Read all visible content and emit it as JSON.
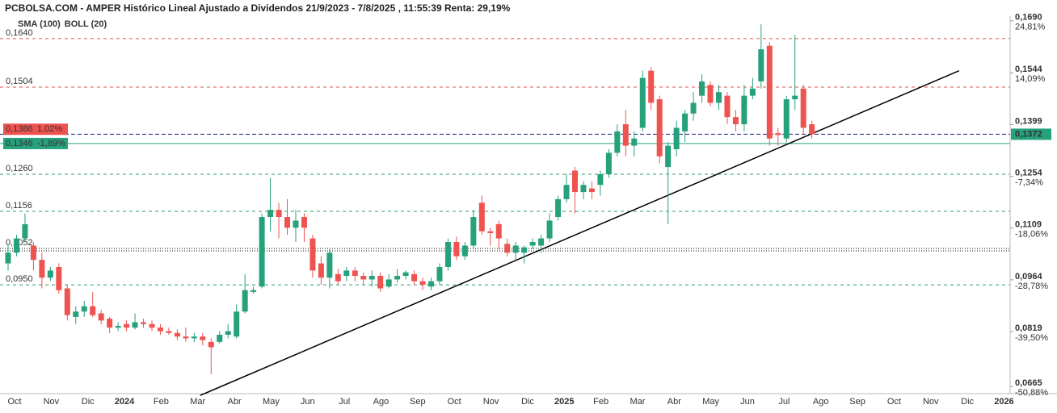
{
  "chart_data": {
    "type": "candlestick",
    "title": "PCBOLSA.COM - AMPER Histórico Lineal Ajustado a Dividendos 21/9/2023 - 7/8/2025 , 11:55:39 Renta: 29,19%",
    "indicators": [
      {
        "name": "SMA (100)",
        "color": "#8fcdee"
      },
      {
        "name": "BOLL (20)",
        "color": "#c5d3dc"
      }
    ],
    "up_color": "#26a17b",
    "down_color": "#ef5350",
    "months": [
      "Oct",
      "Nov",
      "Dic",
      "2024",
      "Feb",
      "Mar",
      "Abr",
      "May",
      "Jun",
      "Jul",
      "Ago",
      "Sep",
      "Oct",
      "Nov",
      "Dic",
      "2025",
      "Feb",
      "Mar",
      "Abr",
      "May",
      "Jun",
      "Jul",
      "Ago",
      "Sep",
      "Oct",
      "Nov",
      "Dic",
      "2026"
    ],
    "open": [
      0.101,
      0.104,
      0.108,
      0.106,
      0.102,
      0.097,
      0.1,
      0.094,
      0.086,
      0.0875,
      0.089,
      0.087,
      0.0855,
      0.083,
      0.084,
      0.083,
      0.0845,
      0.084,
      0.083,
      0.082,
      0.0815,
      0.0805,
      0.08,
      0.0805,
      0.079,
      0.079,
      0.081,
      0.0805,
      0.0875,
      0.093,
      0.0945,
      0.114,
      0.116,
      0.114,
      0.111,
      0.114,
      0.108,
      0.101,
      0.097,
      0.098,
      0.0975,
      0.099,
      0.0975,
      0.0965,
      0.0975,
      0.0945,
      0.0965,
      0.0975,
      0.098,
      0.096,
      0.0945,
      0.096,
      0.1,
      0.107,
      0.103,
      0.106,
      0.118,
      0.11,
      0.112,
      0.1065,
      0.104,
      0.104,
      0.106,
      0.106,
      0.108,
      0.114,
      0.119,
      0.127,
      0.121,
      0.122,
      0.123,
      0.126,
      0.132,
      0.14,
      0.134,
      0.139,
      0.155,
      0.147,
      0.128,
      0.133,
      0.138,
      0.143,
      0.148,
      0.151,
      0.146,
      0.148,
      0.142,
      0.14,
      0.148,
      0.152,
      0.162,
      0.1375,
      0.136,
      0.147,
      0.15,
      0.14
    ],
    "high": [
      0.106,
      0.109,
      0.115,
      0.107,
      0.104,
      0.1,
      0.101,
      0.095,
      0.089,
      0.0905,
      0.093,
      0.088,
      0.086,
      0.0845,
      0.085,
      0.087,
      0.0855,
      0.085,
      0.084,
      0.083,
      0.0825,
      0.083,
      0.0815,
      0.0815,
      0.08,
      0.082,
      0.084,
      0.0895,
      0.098,
      0.0945,
      0.115,
      0.125,
      0.118,
      0.119,
      0.116,
      0.115,
      0.109,
      0.103,
      0.105,
      0.0995,
      0.1,
      0.1,
      0.0985,
      0.099,
      0.0985,
      0.098,
      0.0995,
      0.099,
      0.099,
      0.097,
      0.097,
      0.101,
      0.108,
      0.1085,
      0.107,
      0.116,
      0.12,
      0.111,
      0.113,
      0.108,
      0.107,
      0.106,
      0.108,
      0.109,
      0.115,
      0.12,
      0.126,
      0.128,
      0.124,
      0.124,
      0.127,
      0.133,
      0.14,
      0.144,
      0.138,
      0.155,
      0.156,
      0.148,
      0.135,
      0.141,
      0.144,
      0.149,
      0.154,
      0.152,
      0.151,
      0.149,
      0.144,
      0.151,
      0.153,
      0.168,
      0.163,
      0.139,
      0.148,
      0.165,
      0.151,
      0.141
    ],
    "low": [
      0.099,
      0.103,
      0.107,
      0.099,
      0.094,
      0.096,
      0.0925,
      0.085,
      0.084,
      0.086,
      0.086,
      0.084,
      0.0815,
      0.082,
      0.082,
      0.0825,
      0.083,
      0.082,
      0.081,
      0.081,
      0.0795,
      0.079,
      0.079,
      0.078,
      0.07,
      0.0785,
      0.08,
      0.08,
      0.087,
      0.0925,
      0.094,
      0.11,
      0.108,
      0.109,
      0.107,
      0.107,
      0.097,
      0.095,
      0.094,
      0.095,
      0.096,
      0.096,
      0.095,
      0.0945,
      0.093,
      0.094,
      0.0955,
      0.0965,
      0.095,
      0.0935,
      0.0935,
      0.095,
      0.099,
      0.102,
      0.102,
      0.105,
      0.109,
      0.106,
      0.105,
      0.103,
      0.102,
      0.101,
      0.105,
      0.104,
      0.107,
      0.113,
      0.118,
      0.115,
      0.119,
      0.119,
      0.12,
      0.125,
      0.131,
      0.131,
      0.131,
      0.138,
      0.144,
      0.129,
      0.112,
      0.131,
      0.135,
      0.141,
      0.146,
      0.145,
      0.144,
      0.14,
      0.138,
      0.138,
      0.147,
      0.15,
      0.134,
      0.134,
      0.135,
      0.144,
      0.137,
      0.136
    ],
    "close": [
      0.104,
      0.108,
      0.112,
      0.102,
      0.097,
      0.099,
      0.0935,
      0.0865,
      0.0875,
      0.089,
      0.0865,
      0.085,
      0.083,
      0.0835,
      0.083,
      0.0845,
      0.084,
      0.083,
      0.082,
      0.0815,
      0.0805,
      0.08,
      0.0805,
      0.0795,
      0.0775,
      0.081,
      0.082,
      0.0875,
      0.0935,
      0.0935,
      0.114,
      0.116,
      0.114,
      0.111,
      0.113,
      0.111,
      0.099,
      0.097,
      0.104,
      0.096,
      0.099,
      0.0975,
      0.0965,
      0.0975,
      0.094,
      0.0965,
      0.0975,
      0.0985,
      0.096,
      0.095,
      0.096,
      0.1,
      0.107,
      0.103,
      0.106,
      0.114,
      0.11,
      0.1095,
      0.108,
      0.104,
      0.106,
      0.1055,
      0.107,
      0.108,
      0.113,
      0.119,
      0.123,
      0.121,
      0.123,
      0.121,
      0.126,
      0.132,
      0.138,
      0.134,
      0.136,
      0.153,
      0.146,
      0.131,
      0.134,
      0.139,
      0.143,
      0.146,
      0.152,
      0.146,
      0.149,
      0.142,
      0.14,
      0.148,
      0.15,
      0.161,
      0.136,
      0.137,
      0.147,
      0.148,
      0.139,
      0.1372
    ],
    "ylim": [
      0.0645,
      0.1703
    ],
    "yticks": [
      {
        "value": 0.169,
        "label": "0,1690",
        "pct": "24,81%"
      },
      {
        "value": 0.1544,
        "label": "0,1544",
        "pct": "14,09%"
      },
      {
        "value": 0.1399,
        "label": "0,1399"
      },
      {
        "value": 0.1254,
        "label": "0,1254",
        "pct": "-7,34%"
      },
      {
        "value": 0.1109,
        "label": "0,1109",
        "pct": "-18,06%"
      },
      {
        "value": 0.0964,
        "label": "0,0964",
        "pct": "-28,78%"
      },
      {
        "value": 0.0819,
        "label": "0,0819",
        "pct": "-39,50%"
      },
      {
        "value": 0.0665,
        "label": "0,0665",
        "pct": "-50,88%"
      }
    ],
    "levels": [
      {
        "value": 0.164,
        "label": "0,1640"
      },
      {
        "value": 0.1504,
        "label": "0,1504"
      },
      {
        "value": 0.126,
        "label": "0,1260"
      },
      {
        "value": 0.1156,
        "label": "0,1156"
      },
      {
        "value": 0.1052,
        "label": "0,1052"
      },
      {
        "value": 0.095,
        "label": "0,0950"
      }
    ],
    "price_tags": [
      {
        "value": 0.1386,
        "label": "0,1386",
        "change": "1,02%",
        "color": "#ef5350"
      },
      {
        "value": 0.1346,
        "label": "0,1346",
        "change": "-1,89%",
        "color": "#26a17b"
      }
    ],
    "last_price": {
      "value": 0.1372,
      "label": "0,1372",
      "color": "#26a17b"
    },
    "trendline": {
      "x": [
        22.7,
        112.4
      ],
      "y": [
        0.064,
        0.155
      ]
    }
  }
}
